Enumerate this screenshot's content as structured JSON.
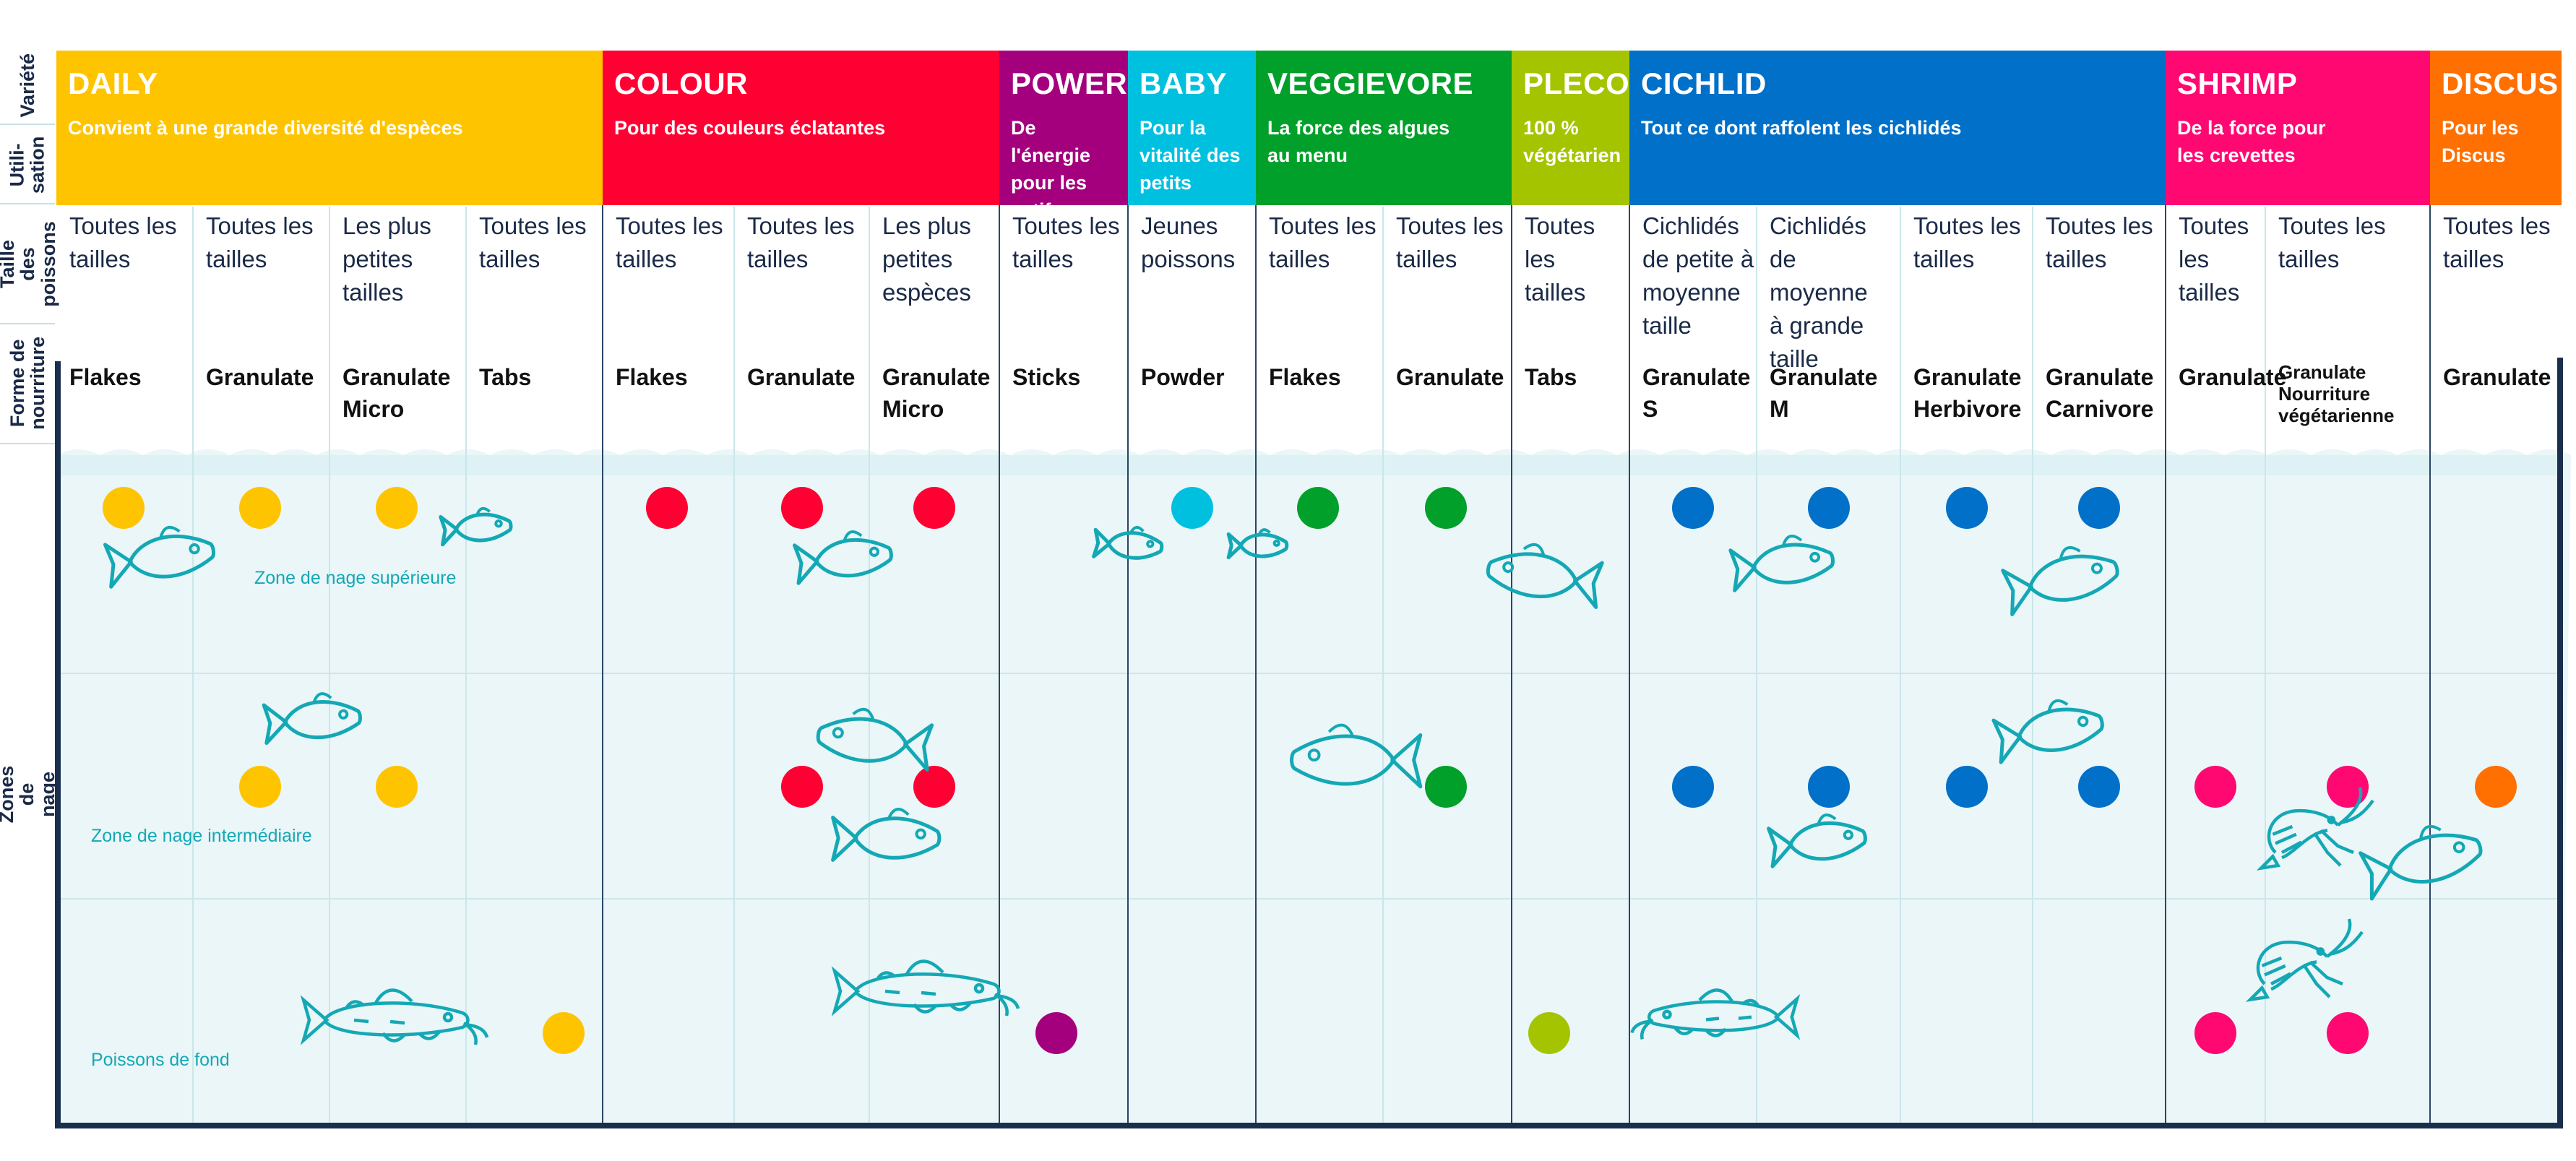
{
  "row_labels": {
    "variety": "Variété",
    "usage": "Utili-\nsation",
    "fish_size": "Taille des\npoissons",
    "food_form": "Forme de\nnourriture",
    "zones": "Zones de nage"
  },
  "zone_labels": {
    "top": "Zone de nage supérieure",
    "middle": "Zone de nage intermédiaire",
    "bottom": "Poissons de fond"
  },
  "products": [
    {
      "name": "DAILY",
      "usage": "Convient à une grande diversité d'espèces",
      "color": "#ffc400"
    },
    {
      "name": "COLOUR",
      "usage": "Pour des couleurs éclatantes",
      "color": "#ff0033"
    },
    {
      "name": "POWER",
      "usage": "De l'énergie\npour les\nactifs",
      "color": "#a4007e"
    },
    {
      "name": "BABY",
      "usage": "Pour la\nvitalité des\npetits",
      "color": "#00c0e0"
    },
    {
      "name": "VEGGIEVORE",
      "usage": "La force des algues\nau menu",
      "color": "#00a02a"
    },
    {
      "name": "PLECO",
      "usage": "100 %\nvégétarien",
      "color": "#a4c400"
    },
    {
      "name": "CICHLID",
      "usage": "Tout ce dont raffolent les cichlidés",
      "color": "#0070c8"
    },
    {
      "name": "SHRIMP",
      "usage": "De la force pour\nles crevettes",
      "color": "#ff0872"
    },
    {
      "name": "DISCUS",
      "usage": "Pour les\nDiscus",
      "color": "#ff7000"
    }
  ],
  "variants": [
    {
      "product": "DAILY",
      "size": "Toutes les\ntailles",
      "form": "Flakes",
      "zones": [
        "top"
      ]
    },
    {
      "product": "DAILY",
      "size": "Toutes les\ntailles",
      "form": "Granulate",
      "zones": [
        "top",
        "middle"
      ]
    },
    {
      "product": "DAILY",
      "size": "Les plus\npetites\ntailles",
      "form": "Granulate\nMicro",
      "zones": [
        "top",
        "middle"
      ]
    },
    {
      "product": "DAILY",
      "size": "Toutes les\ntailles",
      "form": "Tabs",
      "zones": [
        "bottom"
      ]
    },
    {
      "product": "COLOUR",
      "size": "Toutes les\ntailles",
      "form": "Flakes",
      "zones": [
        "top"
      ]
    },
    {
      "product": "COLOUR",
      "size": "Toutes les\ntailles",
      "form": "Granulate",
      "zones": [
        "top",
        "middle"
      ]
    },
    {
      "product": "COLOUR",
      "size": "Les plus\npetites\nespèces",
      "form": "Granulate\nMicro",
      "zones": [
        "top",
        "middle"
      ]
    },
    {
      "product": "POWER",
      "size": "Toutes les\ntailles",
      "form": "Sticks",
      "zones": [
        "bottom"
      ]
    },
    {
      "product": "BABY",
      "size": "Jeunes\npoissons",
      "form": "Powder",
      "zones": [
        "top"
      ]
    },
    {
      "product": "VEGGIEVORE",
      "size": "Toutes les\ntailles",
      "form": "Flakes",
      "zones": [
        "top"
      ]
    },
    {
      "product": "VEGGIEVORE",
      "size": "Toutes les\ntailles",
      "form": "Granulate",
      "zones": [
        "top",
        "middle"
      ]
    },
    {
      "product": "PLECO",
      "size": "Toutes\nles\ntailles",
      "form": "Tabs",
      "zones": [
        "bottom"
      ]
    },
    {
      "product": "CICHLID",
      "size": "Cichlidés\nde petite à\nmoyenne\ntaille",
      "form": "Granulate\nS",
      "zones": [
        "top",
        "middle"
      ]
    },
    {
      "product": "CICHLID",
      "size": "Cichlidés\nde moyenne\nà grande\ntaille",
      "form": "Granulate\nM",
      "zones": [
        "top",
        "middle"
      ]
    },
    {
      "product": "CICHLID",
      "size": "Toutes les\ntailles",
      "form": "Granulate\nHerbivore",
      "zones": [
        "top",
        "middle"
      ]
    },
    {
      "product": "CICHLID",
      "size": "Toutes les\ntailles",
      "form": "Granulate\nCarnivore",
      "zones": [
        "top",
        "middle"
      ]
    },
    {
      "product": "SHRIMP",
      "size": "Toutes les\ntailles",
      "form": "Granulate",
      "zones": [
        "middle",
        "bottom"
      ]
    },
    {
      "product": "SHRIMP",
      "size": "Toutes les\ntailles",
      "form": "Granulate\nNourriture\nvégétarienne",
      "zones": [
        "middle",
        "bottom"
      ]
    },
    {
      "product": "DISCUS",
      "size": "Toutes les\ntailles",
      "form": "Granulate",
      "zones": [
        "middle"
      ]
    }
  ],
  "colors": {
    "water": "#eaf6f8",
    "wave": "#d6eef2",
    "grid_light": "#c9e7ea",
    "grid_dark": "#2a4565",
    "frame": "#1a2f4d",
    "fish_outline": "#14a8b5",
    "text_dark": "#1a2a47"
  },
  "icons": [
    "fish-icon",
    "catfish-icon",
    "shrimp-icon"
  ]
}
